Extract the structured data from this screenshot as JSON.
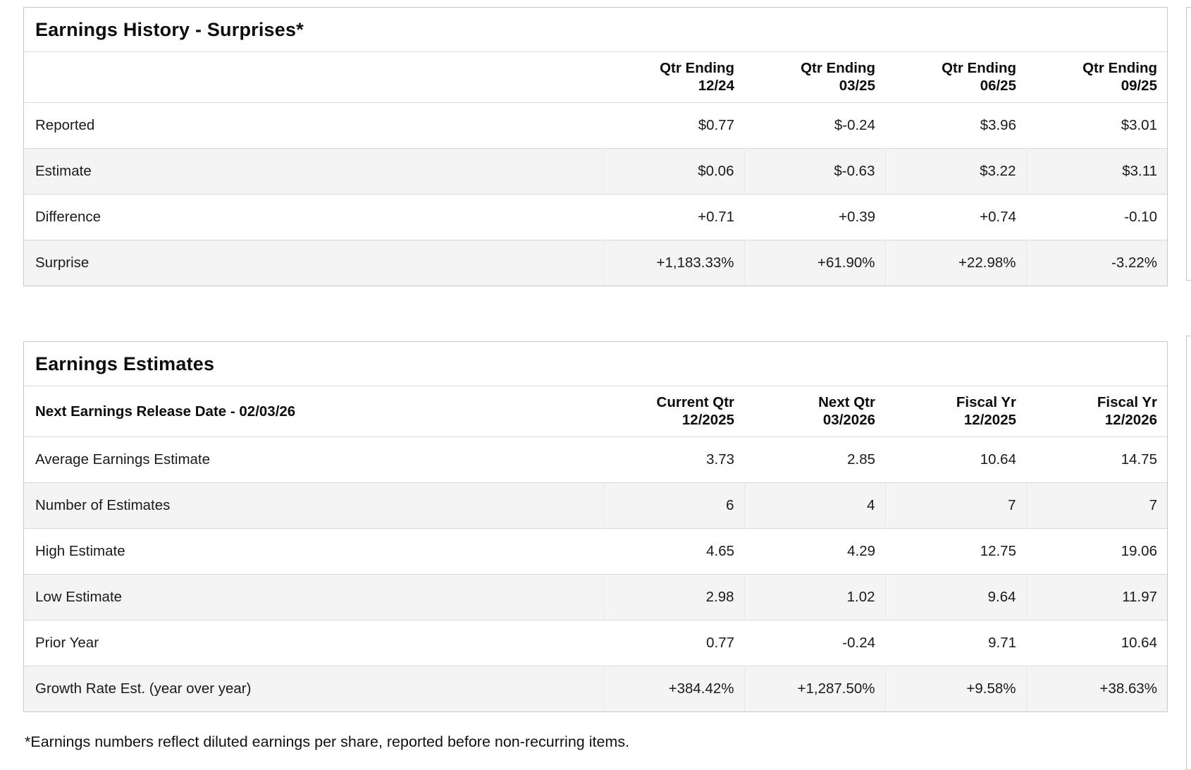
{
  "colors": {
    "positive": "#157f3d",
    "negative": "#d60000",
    "stripe": "#f4f4f4",
    "border": "#c9c9c9"
  },
  "earnings_history": {
    "title": "Earnings History - Surprises*",
    "columns": [
      {
        "line1": "Qtr Ending",
        "line2": "12/24"
      },
      {
        "line1": "Qtr Ending",
        "line2": "03/25"
      },
      {
        "line1": "Qtr Ending",
        "line2": "06/25"
      },
      {
        "line1": "Qtr Ending",
        "line2": "09/25"
      }
    ],
    "rows": [
      {
        "label": "Reported",
        "values": [
          "$0.77",
          "$-0.24",
          "$3.96",
          "$3.01"
        ]
      },
      {
        "label": "Estimate",
        "values": [
          "$0.06",
          "$-0.63",
          "$3.22",
          "$3.11"
        ]
      },
      {
        "label": "Difference",
        "values": [
          "+0.71",
          "+0.39",
          "+0.74",
          "-0.10"
        ]
      },
      {
        "label": "Surprise",
        "values": [
          "+1,183.33%",
          "+61.90%",
          "+22.98%",
          "-3.22%"
        ]
      }
    ]
  },
  "earnings_estimates": {
    "title": "Earnings Estimates",
    "corner_label": "Next Earnings Release Date - 02/03/26",
    "columns": [
      {
        "line1": "Current Qtr",
        "line2": "12/2025"
      },
      {
        "line1": "Next Qtr",
        "line2": "03/2026"
      },
      {
        "line1": "Fiscal Yr",
        "line2": "12/2025"
      },
      {
        "line1": "Fiscal Yr",
        "line2": "12/2026"
      }
    ],
    "rows": [
      {
        "label": "Average Earnings Estimate",
        "values": [
          "3.73",
          "2.85",
          "10.64",
          "14.75"
        ]
      },
      {
        "label": "Number of Estimates",
        "values": [
          "6",
          "4",
          "7",
          "7"
        ]
      },
      {
        "label": "High Estimate",
        "values": [
          "4.65",
          "4.29",
          "12.75",
          "19.06"
        ]
      },
      {
        "label": "Low Estimate",
        "values": [
          "2.98",
          "1.02",
          "9.64",
          "11.97"
        ]
      },
      {
        "label": "Prior Year",
        "values": [
          "0.77",
          "-0.24",
          "9.71",
          "10.64"
        ]
      },
      {
        "label": "Growth Rate Est. (year over year)",
        "values": [
          "+384.42%",
          "+1,287.50%",
          "+9.58%",
          "+38.63%"
        ]
      }
    ]
  },
  "footnote": "*Earnings numbers reflect diluted earnings per share, reported before non-recurring items."
}
